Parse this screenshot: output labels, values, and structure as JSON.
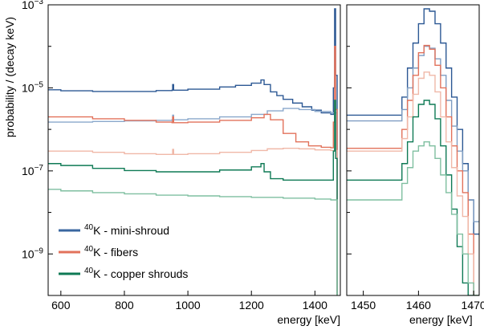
{
  "chart_data": [
    {
      "type": "line",
      "step": true,
      "xlim": [
        560,
        1480
      ],
      "ylim": [
        1e-10,
        0.001
      ],
      "yscale": "log",
      "grid": false,
      "xlabel": "energy [keV]",
      "ylabel": "probability / (decay keV)",
      "xticks": [
        600,
        800,
        1000,
        1200,
        1400
      ],
      "xtick_labels": [
        "600",
        "800",
        "1000",
        "1200",
        "1400"
      ],
      "yticks": [
        0.001,
        1e-05,
        1e-07,
        1e-09
      ],
      "ytick_labels": [
        {
          "base": "10",
          "exp": "−3"
        },
        {
          "base": "10",
          "exp": "−5"
        },
        {
          "base": "10",
          "exp": "−7"
        },
        {
          "base": "10",
          "exp": "−9"
        }
      ],
      "legend": {
        "placement": "lower-left",
        "entries": [
          {
            "sup": "40",
            "label": "K - mini-shroud",
            "color": "#3a67a0"
          },
          {
            "sup": "40",
            "label": "K - fibers",
            "color": "#e2725b"
          },
          {
            "sup": "40",
            "label": "K - copper shrouds",
            "color": "#0f7a55"
          }
        ]
      },
      "series": [
        {
          "color": "#2c5894",
          "x": [
            560,
            600,
            700,
            800,
            900,
            950,
            952,
            955,
            1000,
            1100,
            1150,
            1200,
            1230,
            1240,
            1260,
            1280,
            1300,
            1330,
            1360,
            1390,
            1420,
            1450,
            1458,
            1462,
            1465,
            1470
          ],
          "y": [
            9e-06,
            8.5e-06,
            8.2e-06,
            8.2e-06,
            8.6e-06,
            8.8e-06,
            1.2e-05,
            8.8e-06,
            9.3e-06,
            1.05e-05,
            1.15e-05,
            1.3e-05,
            1.55e-05,
            1.2e-05,
            8e-06,
            6.5e-06,
            5.3e-06,
            4.3e-06,
            3.5e-06,
            2.9e-06,
            2.5e-06,
            2.3e-06,
            1e-05,
            0.0008,
            2e-05,
            1e-10
          ]
        },
        {
          "color": "#8aa8cc",
          "x": [
            560,
            700,
            800,
            900,
            950,
            952,
            955,
            1000,
            1100,
            1200,
            1250,
            1300,
            1350,
            1400,
            1450,
            1460,
            1470
          ],
          "y": [
            1.5e-06,
            1.55e-06,
            1.6e-06,
            1.65e-06,
            1.7e-06,
            2.2e-06,
            1.7e-06,
            1.8e-06,
            2e-06,
            2.3e-06,
            2.8e-06,
            3.2e-06,
            3e-06,
            2.7e-06,
            2.5e-06,
            2.5e-06,
            1e-10
          ]
        },
        {
          "color": "#e2725b",
          "x": [
            560,
            700,
            800,
            900,
            950,
            952,
            955,
            1000,
            1100,
            1200,
            1240,
            1260,
            1300,
            1340,
            1380,
            1420,
            1450,
            1458,
            1462,
            1465,
            1470
          ],
          "y": [
            2e-06,
            1.8e-06,
            1.65e-06,
            1.5e-06,
            1.45e-06,
            2e-06,
            1.45e-06,
            1.5e-06,
            1.65e-06,
            1.9e-06,
            2.3e-06,
            1.7e-06,
            8e-07,
            5e-07,
            4e-07,
            3.7e-07,
            3.6e-07,
            1.5e-06,
            0.0001,
            3e-06,
            1e-10
          ]
        },
        {
          "color": "#f0b8a8",
          "x": [
            560,
            700,
            800,
            900,
            950,
            952,
            955,
            1000,
            1100,
            1200,
            1250,
            1300,
            1350,
            1400,
            1450,
            1460,
            1470
          ],
          "y": [
            3e-07,
            2.8e-07,
            2.6e-07,
            2.5e-07,
            2.5e-07,
            3.3e-07,
            2.5e-07,
            2.6e-07,
            2.8e-07,
            3.1e-07,
            3.4e-07,
            3.5e-07,
            3.4e-07,
            3.2e-07,
            3.1e-07,
            3.1e-07,
            1e-10
          ]
        },
        {
          "color": "#0f7a55",
          "x": [
            560,
            600,
            700,
            800,
            900,
            1000,
            1100,
            1200,
            1230,
            1240,
            1260,
            1300,
            1350,
            1400,
            1450,
            1458,
            1462,
            1465,
            1470
          ],
          "y": [
            1.5e-07,
            1.35e-07,
            1.15e-07,
            1.02e-07,
            9.5e-08,
            9.5e-08,
            1.05e-07,
            1.25e-07,
            1.5e-07,
            9.5e-08,
            6.5e-08,
            6e-08,
            6e-08,
            6e-08,
            6e-08,
            3e-07,
            5e-06,
            2e-07,
            1e-10
          ]
        },
        {
          "color": "#7fbfa0",
          "x": [
            560,
            600,
            700,
            800,
            900,
            1000,
            1100,
            1200,
            1300,
            1400,
            1450,
            1460,
            1470
          ],
          "y": [
            3.6e-08,
            3.3e-08,
            3e-08,
            2.8e-08,
            2.6e-08,
            2.5e-08,
            2.4e-08,
            2.3e-08,
            2.2e-08,
            2.1e-08,
            2e-08,
            2e-08,
            1e-10
          ]
        }
      ]
    },
    {
      "type": "line",
      "step": true,
      "xlim": [
        1447,
        1471
      ],
      "ylim": [
        1e-10,
        0.001
      ],
      "yscale": "log",
      "grid": false,
      "xlabel": "energy [keV]",
      "xticks": [
        1450,
        1460,
        1470
      ],
      "xtick_labels": [
        "1450",
        "1460",
        "1470"
      ],
      "series": [
        {
          "color": "#2c5894",
          "x": [
            1447,
            1456,
            1457,
            1458,
            1459,
            1460,
            1461,
            1462,
            1463,
            1464,
            1465,
            1466,
            1467,
            1468,
            1469,
            1470,
            1471
          ],
          "y": [
            2.2e-06,
            2.2e-06,
            6e-06,
            3e-05,
            0.00012,
            0.00035,
            0.0008,
            0.0007,
            0.00035,
            0.00012,
            3e-05,
            6e-06,
            1e-06,
            1.5e-07,
            2e-08,
            3e-09,
            3e-09
          ]
        },
        {
          "color": "#7f9dc2",
          "x": [
            1447,
            1456,
            1457,
            1458,
            1459,
            1460,
            1461,
            1462,
            1463,
            1464,
            1465,
            1466,
            1467,
            1468,
            1469,
            1470,
            1471
          ],
          "y": [
            1.6e-06,
            1.6e-06,
            3e-06,
            1e-05,
            3e-05,
            6e-05,
            0.0001,
            9e-05,
            5e-05,
            2e-05,
            5e-06,
            1.2e-06,
            3e-07,
            1e-07,
            2e-08,
            6e-09,
            6e-09
          ]
        },
        {
          "color": "#e2725b",
          "x": [
            1447,
            1456,
            1457,
            1458,
            1459,
            1460,
            1461,
            1462,
            1463,
            1464,
            1465,
            1466,
            1467,
            1468,
            1469,
            1470,
            1471
          ],
          "y": [
            3.5e-07,
            3.5e-07,
            1e-06,
            5e-06,
            2e-05,
            7e-05,
            0.000105,
            8.5e-05,
            3.5e-05,
            1e-05,
            2e-06,
            4e-07,
            1e-07,
            3e-08,
            3e-09,
            1e-10,
            1e-10
          ]
        },
        {
          "color": "#f0b8a8",
          "x": [
            1447,
            1456,
            1457,
            1458,
            1459,
            1460,
            1461,
            1462,
            1463,
            1464,
            1465,
            1466,
            1467,
            1468,
            1469,
            1470,
            1471
          ],
          "y": [
            3e-07,
            3e-07,
            6e-07,
            2e-06,
            7e-06,
            1.7e-05,
            2.4e-05,
            2e-05,
            8e-06,
            2e-06,
            5e-07,
            1.2e-07,
            2.5e-08,
            8e-09,
            1e-09,
            1e-10,
            1e-10
          ]
        },
        {
          "color": "#0f7a55",
          "x": [
            1447,
            1456,
            1457,
            1458,
            1459,
            1460,
            1461,
            1462,
            1463,
            1464,
            1465,
            1466,
            1467,
            1468,
            1469,
            1470,
            1471
          ],
          "y": [
            6e-08,
            6e-08,
            1.5e-07,
            5e-07,
            2e-06,
            4e-06,
            5e-06,
            4e-06,
            1.8e-06,
            4e-07,
            8e-08,
            1.2e-08,
            1.5e-09,
            2e-10,
            1e-10,
            1e-10,
            1e-10
          ]
        },
        {
          "color": "#7fbfa0",
          "x": [
            1447,
            1456,
            1457,
            1458,
            1459,
            1460,
            1461,
            1462,
            1463,
            1464,
            1465,
            1466,
            1467,
            1468,
            1469,
            1470,
            1471
          ],
          "y": [
            2e-08,
            2e-08,
            5e-08,
            1.2e-07,
            3e-07,
            4e-07,
            5e-07,
            4e-07,
            2e-07,
            8e-08,
            3e-08,
            9e-09,
            3e-09,
            1e-09,
            2e-10,
            1e-10,
            1e-10
          ]
        }
      ]
    }
  ]
}
